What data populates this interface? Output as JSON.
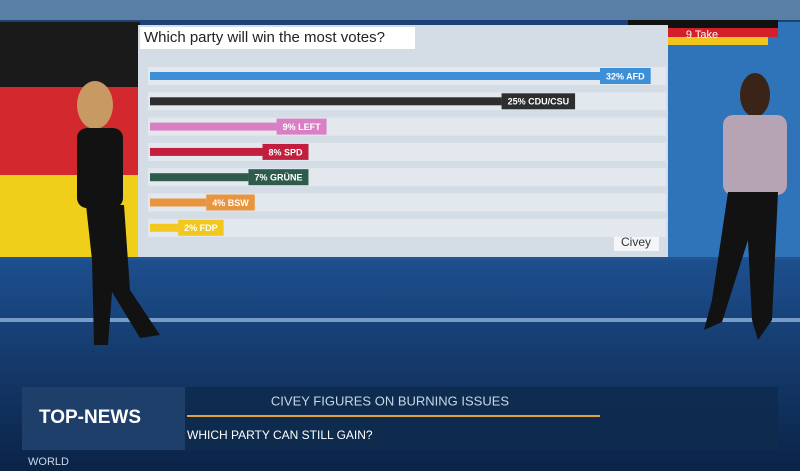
{
  "chart_data": {
    "type": "bar",
    "orientation": "horizontal",
    "title": "Which party will win the most votes?",
    "values": [
      32,
      25,
      9,
      8,
      7,
      4,
      2
    ],
    "value_labels": [
      "32% AFD",
      "25% CDU/CSU",
      "9% LEFT",
      "8% SPD",
      "7% GRÜNE",
      "4% BSW",
      "2% FDP"
    ],
    "colors": [
      "#3d8fd8",
      "#2e2e30",
      "#d980c4",
      "#c21f3f",
      "#2f5b4c",
      "#e99540",
      "#f2c81f"
    ],
    "source": "Civey"
  },
  "logo": "9 Take",
  "broadcast": {
    "brand": "TOP-NEWS",
    "channel": "WORLD",
    "headline": "CIVEY FIGURES ON BURNING ISSUES",
    "subheadline": "WHICH PARTY CAN STILL GAIN?"
  }
}
